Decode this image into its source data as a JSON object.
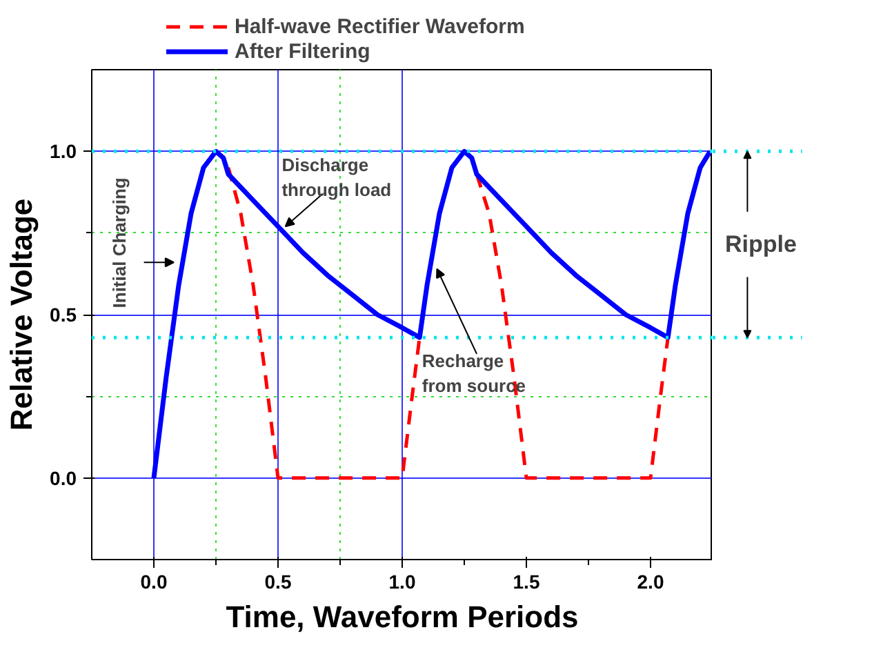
{
  "chart_data": {
    "type": "line",
    "xlabel": "Time, Waveform Periods",
    "ylabel": "Relative Voltage",
    "xlim": [
      -0.25,
      2.25
    ],
    "ylim": [
      -0.25,
      1.25
    ],
    "xticks": [
      {
        "value": 0,
        "label": "0.0"
      },
      {
        "value": 0.25,
        "label": null
      },
      {
        "value": 0.5,
        "label": "0.5"
      },
      {
        "value": 0.75,
        "label": null
      },
      {
        "value": 1,
        "label": "1.0"
      },
      {
        "value": 1.25,
        "label": null
      },
      {
        "value": 1.5,
        "label": "1.5"
      },
      {
        "value": 1.75,
        "label": null
      },
      {
        "value": 2,
        "label": "2.0"
      }
    ],
    "yticks": [
      {
        "value": 0,
        "label": "0.0"
      },
      {
        "value": 0.25,
        "label": null
      },
      {
        "value": 0.5,
        "label": "0.5"
      },
      {
        "value": 0.75,
        "label": null
      },
      {
        "value": 1,
        "label": "1.0"
      }
    ],
    "grid": true,
    "legend": "top",
    "marker": "none",
    "series": [
      {
        "name": "Half-wave Rectifier Waveform",
        "color": "#ff0000",
        "line_style": "dashed",
        "x": [
          0.3,
          0.35,
          0.4,
          0.45,
          0.5,
          1.0,
          1.04,
          1.07,
          1.1,
          1.3,
          1.35,
          1.4,
          1.45,
          1.5,
          2.0,
          2.04,
          2.07
        ],
        "values": [
          0.95,
          0.81,
          0.59,
          0.31,
          0.0,
          0.0,
          0.25,
          0.43,
          null,
          0.93,
          0.81,
          0.59,
          0.31,
          0.0,
          0.0,
          0.25,
          0.43
        ]
      },
      {
        "name": "After Filtering",
        "color": "#0000ff",
        "line_style": "solid",
        "x": [
          0,
          0.05,
          0.1,
          0.15,
          0.2,
          0.25,
          0.28,
          0.3,
          0.4,
          0.5,
          0.6,
          0.7,
          0.8,
          0.9,
          1.0,
          1.07,
          1.1,
          1.15,
          1.2,
          1.25,
          1.28,
          1.3,
          1.4,
          1.5,
          1.6,
          1.7,
          1.8,
          1.9,
          2.0,
          2.07,
          2.1,
          2.15,
          2.2,
          2.24
        ],
        "values": [
          0.0,
          0.31,
          0.59,
          0.81,
          0.95,
          1.0,
          0.98,
          0.93,
          0.85,
          0.77,
          0.69,
          0.62,
          0.56,
          0.5,
          0.46,
          0.43,
          0.59,
          0.81,
          0.95,
          1.0,
          0.98,
          0.93,
          0.85,
          0.77,
          0.69,
          0.62,
          0.56,
          0.5,
          0.46,
          0.43,
          0.59,
          0.81,
          0.95,
          1.0
        ]
      }
    ],
    "ref_lines": [
      {
        "axis": "y",
        "value": 1.0,
        "label": null,
        "color": "#00e5ee",
        "line_style": "dotted"
      },
      {
        "axis": "y",
        "value": 0.43,
        "label": null,
        "color": "#00e5ee",
        "line_style": "dotted"
      }
    ],
    "annotations": [
      {
        "text": "Initial Charging",
        "x": 0.1,
        "y": 0.66
      },
      {
        "text": "Discharge\nthrough load",
        "x": 0.52,
        "y": 0.77
      },
      {
        "text": "Recharge\nfrom source",
        "x": 1.14,
        "y": 0.64
      },
      "Ripple"
    ]
  }
}
